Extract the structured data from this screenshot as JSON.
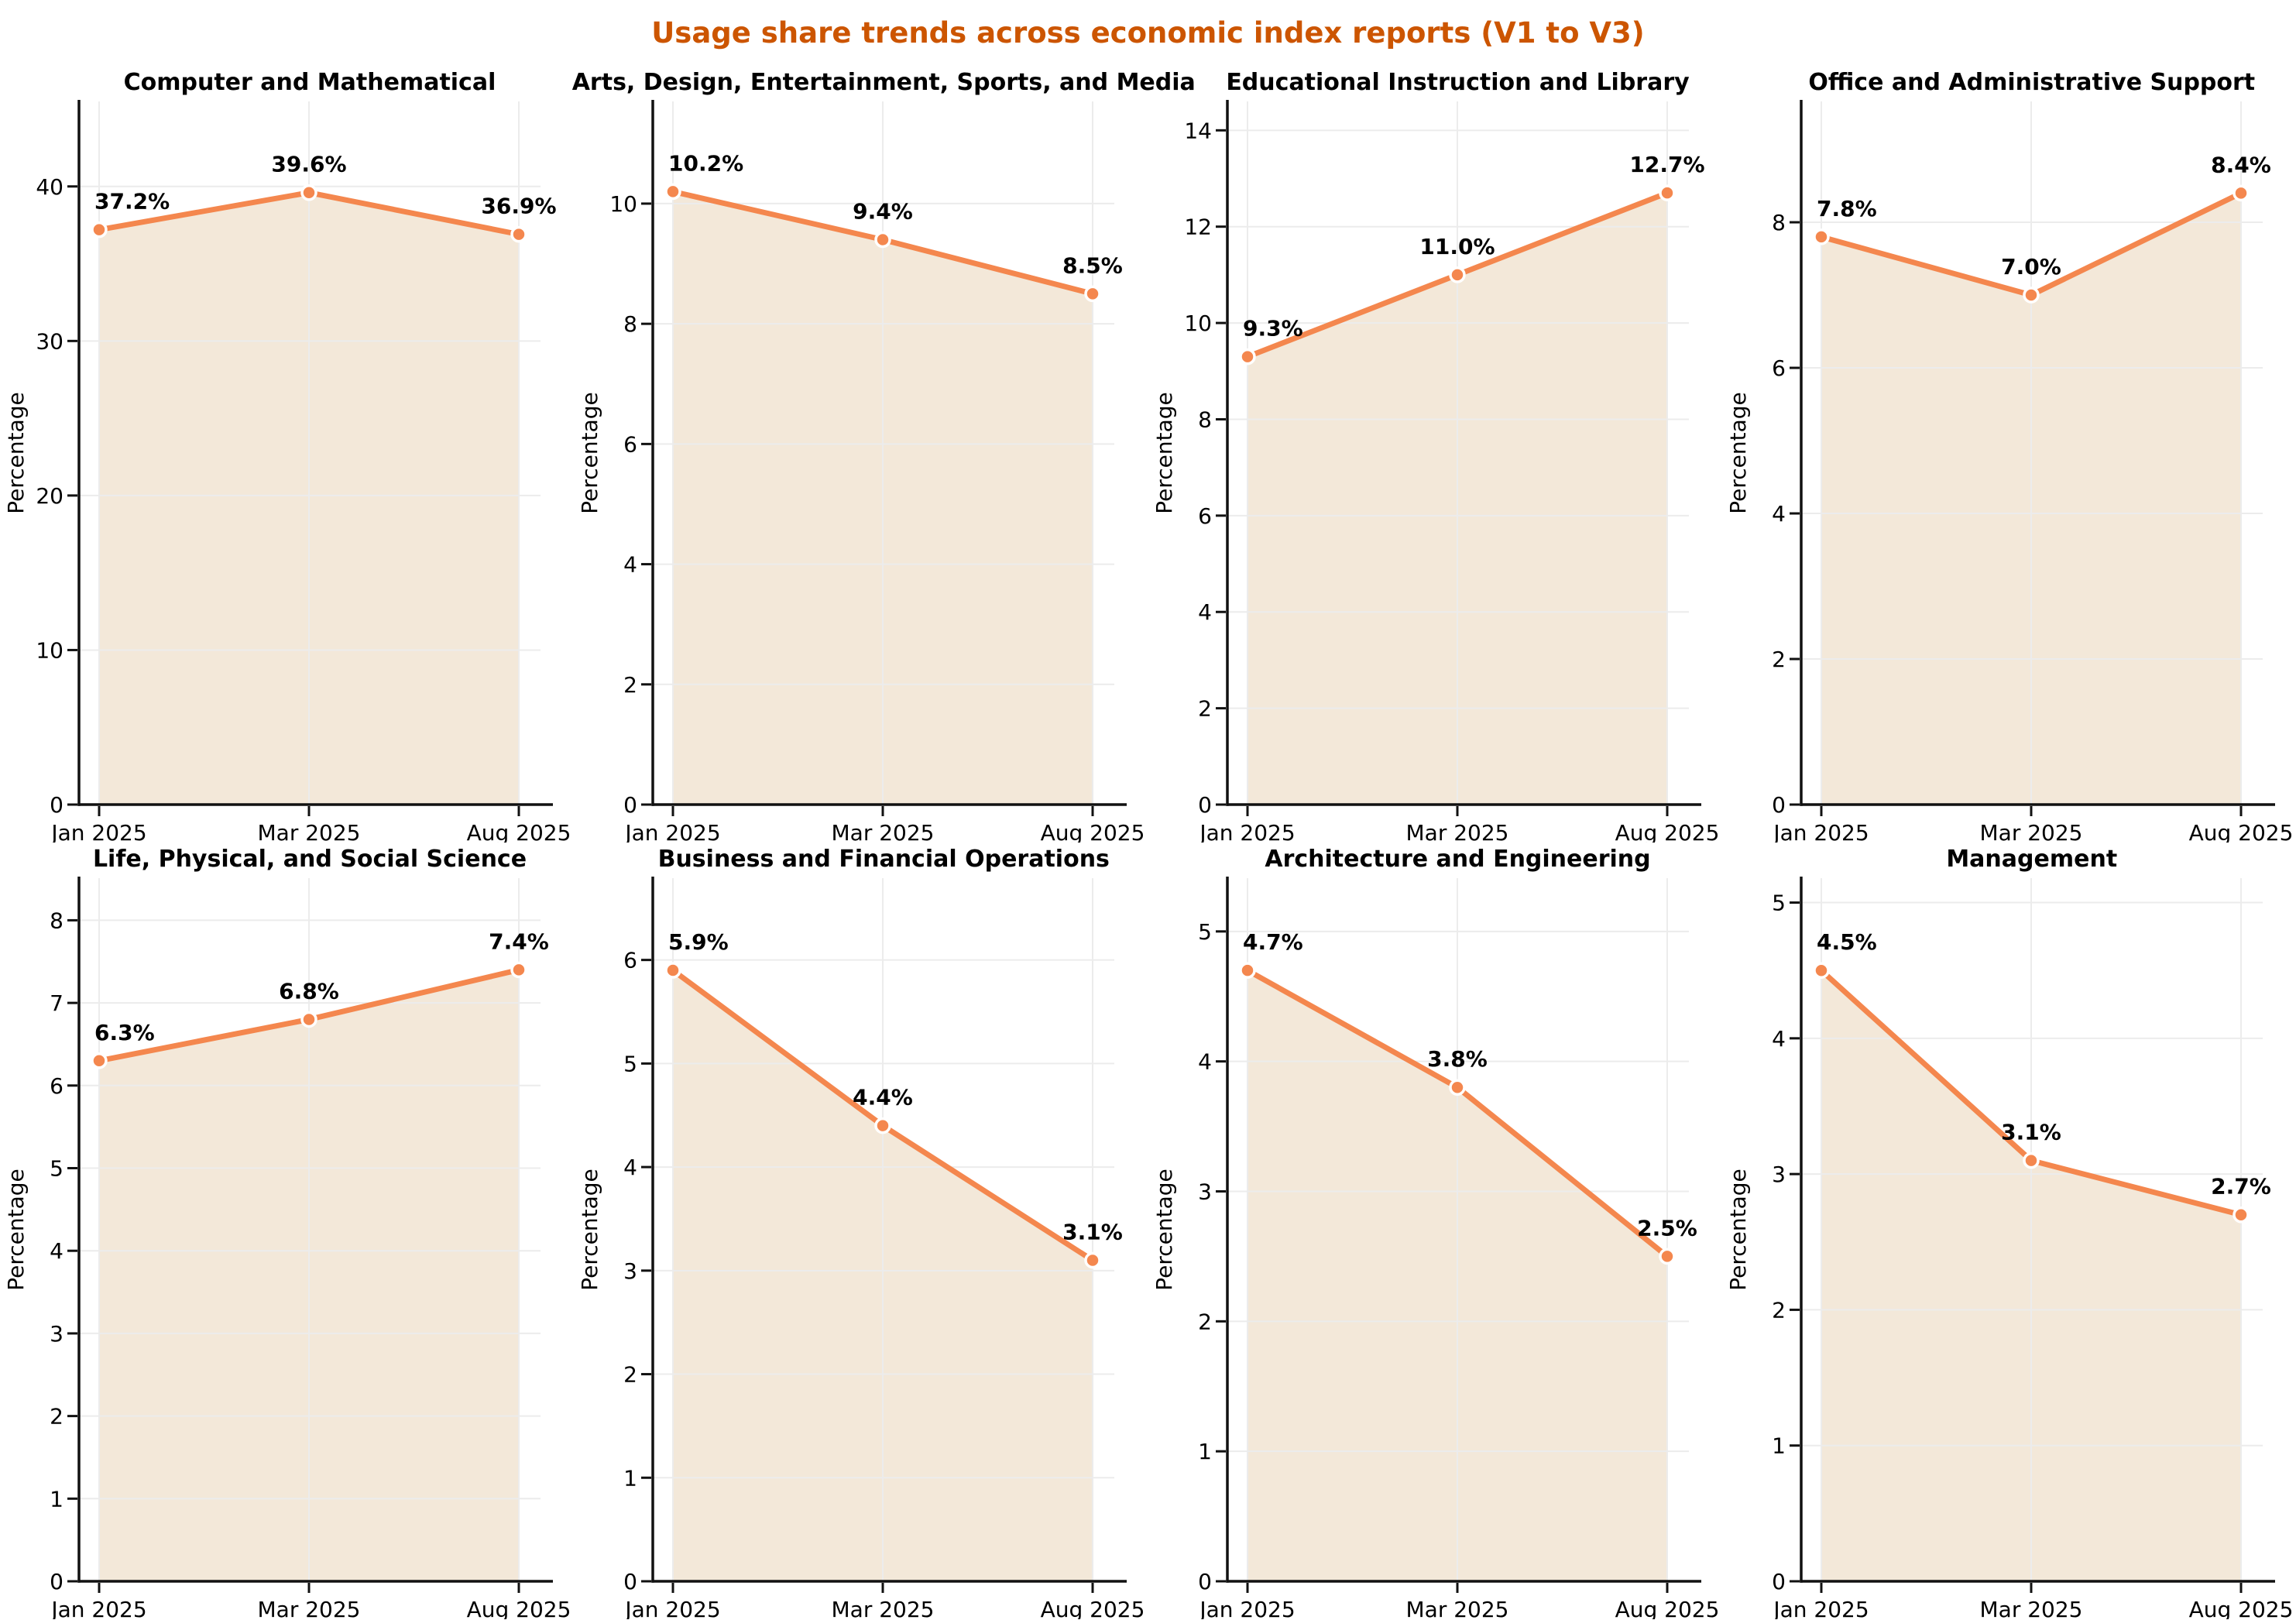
{
  "page_title": "Usage share trends across economic index reports (V1 to V3)",
  "ylabel": "Percentage",
  "x_categories": [
    "Jan 2025",
    "Mar 2025",
    "Aug 2025"
  ],
  "colors": {
    "title": "#CC5500",
    "line": "#F4874E",
    "marker": "#F4874E",
    "marker_edge": "#FFFFFF",
    "area_fill": "#F3E8D9",
    "grid": "#ECECEC",
    "axis": "#111111",
    "text": "#000000"
  },
  "chart_data": [
    {
      "type": "area",
      "title": "Computer and Mathematical",
      "x": [
        "Jan 2025",
        "Mar 2025",
        "Aug 2025"
      ],
      "values": [
        37.2,
        39.6,
        36.9
      ],
      "point_labels": [
        "37.2%",
        "39.6%",
        "36.9%"
      ],
      "yticks": [
        0,
        10,
        20,
        30,
        40
      ],
      "ylim": [
        0,
        45.5
      ],
      "xlabel": "",
      "ylabel": "Percentage",
      "grid": true,
      "legend": "none"
    },
    {
      "type": "area",
      "title": "Arts, Design, Entertainment, Sports, and Media",
      "x": [
        "Jan 2025",
        "Mar 2025",
        "Aug 2025"
      ],
      "values": [
        10.2,
        9.4,
        8.5
      ],
      "point_labels": [
        "10.2%",
        "9.4%",
        "8.5%"
      ],
      "yticks": [
        0,
        2,
        4,
        6,
        8,
        10
      ],
      "ylim": [
        0,
        11.7
      ],
      "xlabel": "",
      "ylabel": "Percentage",
      "grid": true,
      "legend": "none"
    },
    {
      "type": "area",
      "title": "Educational Instruction and Library",
      "x": [
        "Jan 2025",
        "Mar 2025",
        "Aug 2025"
      ],
      "values": [
        9.3,
        11.0,
        12.7
      ],
      "point_labels": [
        "9.3%",
        "11.0%",
        "12.7%"
      ],
      "yticks": [
        0,
        2,
        4,
        6,
        8,
        10,
        12,
        14
      ],
      "ylim": [
        0,
        14.6
      ],
      "xlabel": "",
      "ylabel": "Percentage",
      "grid": true,
      "legend": "none"
    },
    {
      "type": "area",
      "title": "Office and Administrative Support",
      "x": [
        "Jan 2025",
        "Mar 2025",
        "Aug 2025"
      ],
      "values": [
        7.8,
        7.0,
        8.4
      ],
      "point_labels": [
        "7.8%",
        "7.0%",
        "8.4%"
      ],
      "yticks": [
        0,
        2,
        4,
        6,
        8
      ],
      "ylim": [
        0,
        9.66
      ],
      "xlabel": "",
      "ylabel": "Percentage",
      "grid": true,
      "legend": "none"
    },
    {
      "type": "area",
      "title": "Life, Physical, and Social Science",
      "x": [
        "Jan 2025",
        "Mar 2025",
        "Aug 2025"
      ],
      "values": [
        6.3,
        6.8,
        7.4
      ],
      "point_labels": [
        "6.3%",
        "6.8%",
        "7.4%"
      ],
      "yticks": [
        0,
        1,
        2,
        3,
        4,
        5,
        6,
        7,
        8
      ],
      "ylim": [
        0,
        8.51
      ],
      "xlabel": "",
      "ylabel": "Percentage",
      "grid": true,
      "legend": "none"
    },
    {
      "type": "area",
      "title": "Business and Financial Operations",
      "x": [
        "Jan 2025",
        "Mar 2025",
        "Aug 2025"
      ],
      "values": [
        5.9,
        4.4,
        3.1
      ],
      "point_labels": [
        "5.9%",
        "4.4%",
        "3.1%"
      ],
      "yticks": [
        0,
        1,
        2,
        3,
        4,
        5,
        6
      ],
      "ylim": [
        0,
        6.79
      ],
      "xlabel": "",
      "ylabel": "Percentage",
      "grid": true,
      "legend": "none"
    },
    {
      "type": "area",
      "title": "Architecture and Engineering",
      "x": [
        "Jan 2025",
        "Mar 2025",
        "Aug 2025"
      ],
      "values": [
        4.7,
        3.8,
        2.5
      ],
      "point_labels": [
        "4.7%",
        "3.8%",
        "2.5%"
      ],
      "yticks": [
        0,
        1,
        2,
        3,
        4,
        5
      ],
      "ylim": [
        0,
        5.41
      ],
      "xlabel": "",
      "ylabel": "Percentage",
      "grid": true,
      "legend": "none"
    },
    {
      "type": "area",
      "title": "Management",
      "x": [
        "Jan 2025",
        "Mar 2025",
        "Aug 2025"
      ],
      "values": [
        4.5,
        3.1,
        2.7
      ],
      "point_labels": [
        "4.5%",
        "3.1%",
        "2.7%"
      ],
      "yticks": [
        0,
        1,
        2,
        3,
        4,
        5
      ],
      "ylim": [
        0,
        5.18
      ],
      "xlabel": "",
      "ylabel": "Percentage",
      "grid": true,
      "legend": "none"
    }
  ]
}
